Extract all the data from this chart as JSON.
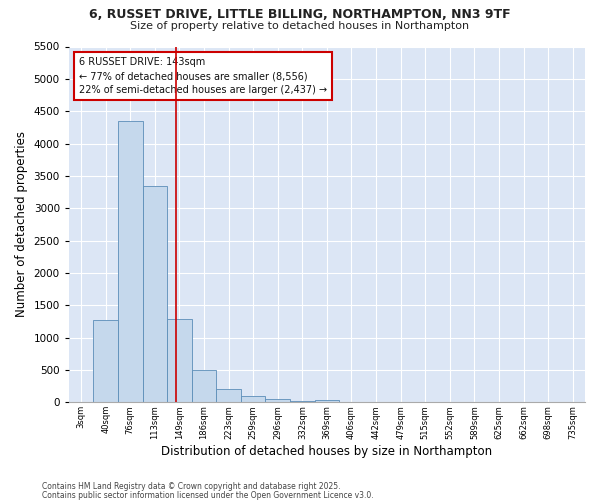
{
  "title_line1": "6, RUSSET DRIVE, LITTLE BILLING, NORTHAMPTON, NN3 9TF",
  "title_line2": "Size of property relative to detached houses in Northampton",
  "xlabel": "Distribution of detached houses by size in Northampton",
  "ylabel": "Number of detached properties",
  "bar_color": "#c5d8ec",
  "bar_edge_color": "#5b8db8",
  "bg_color": "#dce6f5",
  "grid_color": "#ffffff",
  "bin_labels": [
    "3sqm",
    "40sqm",
    "76sqm",
    "113sqm",
    "149sqm",
    "186sqm",
    "223sqm",
    "259sqm",
    "296sqm",
    "332sqm",
    "369sqm",
    "406sqm",
    "442sqm",
    "479sqm",
    "515sqm",
    "552sqm",
    "589sqm",
    "625sqm",
    "662sqm",
    "698sqm",
    "735sqm"
  ],
  "bar_values": [
    0,
    1270,
    4350,
    3340,
    1280,
    500,
    200,
    90,
    55,
    20,
    40,
    0,
    0,
    0,
    0,
    0,
    0,
    0,
    0,
    0,
    0
  ],
  "ylim": [
    0,
    5500
  ],
  "yticks": [
    0,
    500,
    1000,
    1500,
    2000,
    2500,
    3000,
    3500,
    4000,
    4500,
    5000,
    5500
  ],
  "red_line_x": 3.865,
  "annotation_text": "6 RUSSET DRIVE: 143sqm\n← 77% of detached houses are smaller (8,556)\n22% of semi-detached houses are larger (2,437) →",
  "annotation_box_color": "#ffffff",
  "annotation_border_color": "#cc0000",
  "footnote_line1": "Contains HM Land Registry data © Crown copyright and database right 2025.",
  "footnote_line2": "Contains public sector information licensed under the Open Government Licence v3.0."
}
